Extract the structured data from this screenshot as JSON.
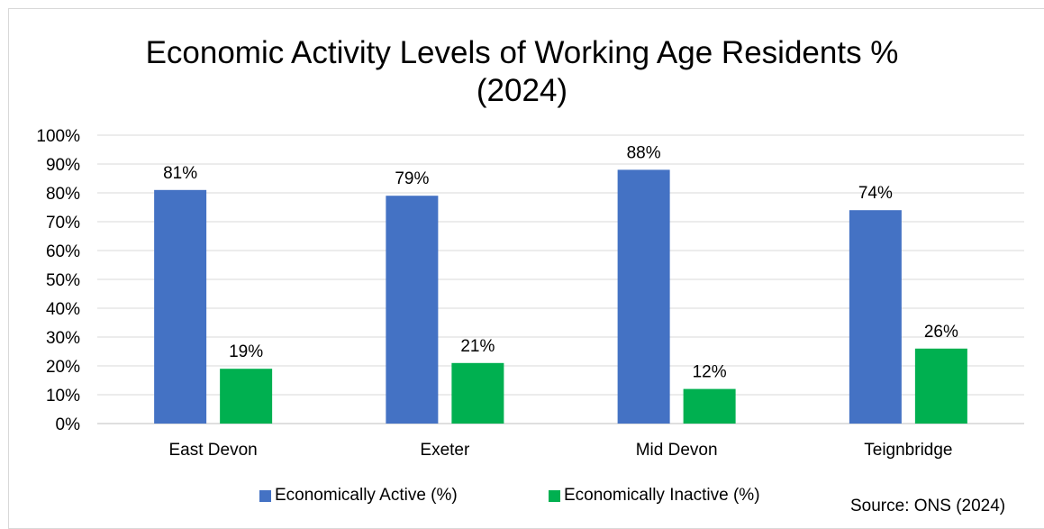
{
  "chart_data": {
    "type": "bar",
    "title_line1": "Economic Activity Levels of Working Age Residents %",
    "title_line2": "(2024)",
    "categories": [
      "East Devon",
      "Exeter",
      "Mid Devon",
      "Teignbridge"
    ],
    "series": [
      {
        "name": "Economically Active (%)",
        "color": "#4472c4",
        "values": [
          81,
          79,
          88,
          74
        ],
        "labels": [
          "81%",
          "79%",
          "88%",
          "74%"
        ]
      },
      {
        "name": "Economically Inactive (%)",
        "color": "#00b050",
        "values": [
          19,
          21,
          12,
          26
        ],
        "labels": [
          "19%",
          "21%",
          "12%",
          "26%"
        ]
      }
    ],
    "ylim": [
      0,
      100
    ],
    "yticks": [
      "0%",
      "10%",
      "20%",
      "30%",
      "40%",
      "50%",
      "60%",
      "70%",
      "80%",
      "90%",
      "100%"
    ],
    "grid": true,
    "legend_position": "bottom",
    "source": "Source: ONS (2024)"
  }
}
